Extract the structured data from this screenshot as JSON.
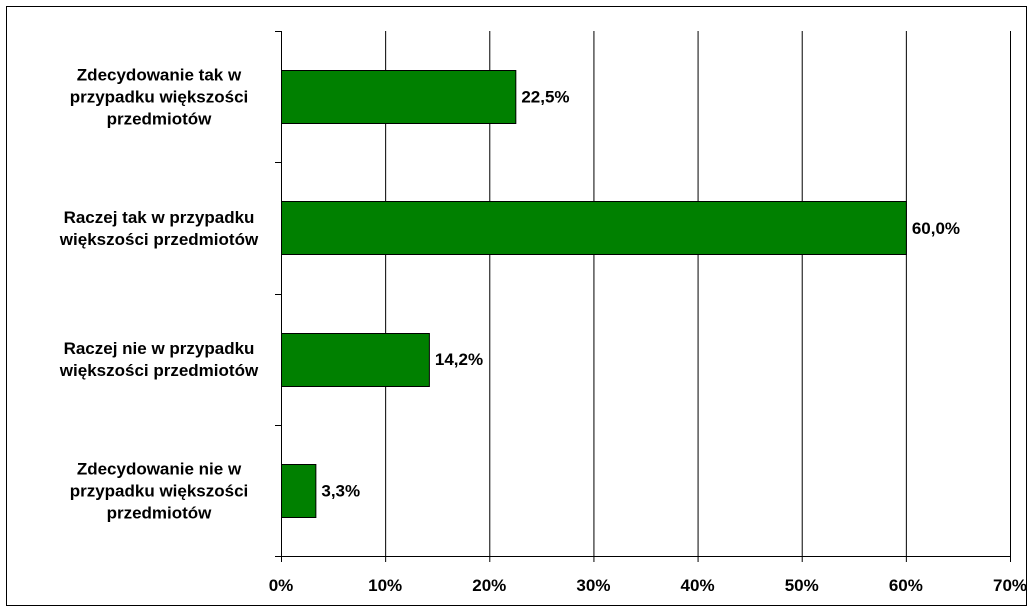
{
  "chart_data": {
    "type": "bar",
    "orientation": "horizontal",
    "categories": [
      [
        "Zdecydowanie tak w",
        "przypadku większości",
        "przedmiotów"
      ],
      [
        "Raczej tak w przypadku",
        "większości przedmiotów"
      ],
      [
        "Raczej nie w przypadku",
        "większości przedmiotów"
      ],
      [
        "Zdecydowanie nie w",
        "przypadku większości",
        "przedmiotów"
      ]
    ],
    "values": [
      22.5,
      60.0,
      14.2,
      3.3
    ],
    "data_labels": [
      "22,5%",
      "60,0%",
      "14,2%",
      "3,3%"
    ],
    "xlim": [
      0,
      70
    ],
    "x_ticks": [
      0,
      10,
      20,
      30,
      40,
      50,
      60,
      70
    ],
    "x_tick_labels": [
      "0%",
      "10%",
      "20%",
      "30%",
      "40%",
      "50%",
      "60%",
      "70%"
    ],
    "grid": "vertical",
    "legend": "none",
    "title": "",
    "xlabel": "",
    "ylabel": "",
    "colors": {
      "bar_fill": "#008000",
      "bar_stroke": "#000000",
      "grid": "#000000",
      "axis": "#000000"
    }
  }
}
